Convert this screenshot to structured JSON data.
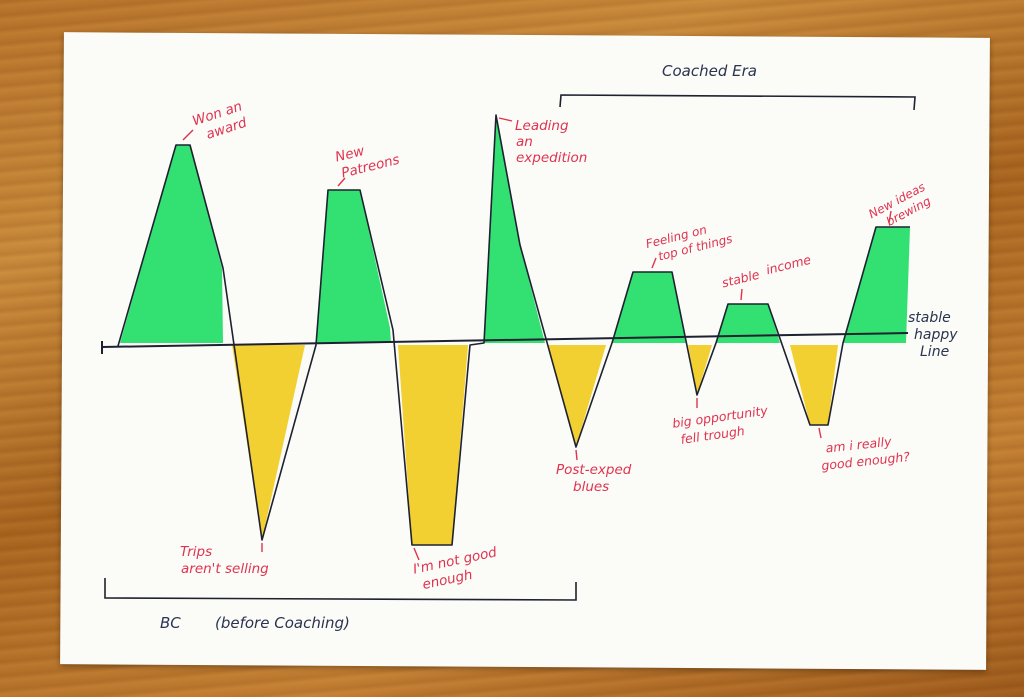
{
  "eras": {
    "coached": "Coached Era",
    "before_a": "BC",
    "before_b": "(before Coaching)"
  },
  "baseline": {
    "line1": "stable",
    "line2": "happy",
    "line3": "Line"
  },
  "annotations": {
    "award_1": "Won an",
    "award_2": "award",
    "patreons_1": "New",
    "patreons_2": "Patreons",
    "expedition_1": "Leading",
    "expedition_2": "an",
    "expedition_3": "expedition",
    "top_1": "Feeling on",
    "top_2": "top of things",
    "income_1": "stable",
    "income_2": "income",
    "ideas_1": "New ideas",
    "ideas_2": "brewing",
    "trips_1": "Trips",
    "trips_2": "aren't selling",
    "notgood_1": "I'm not good",
    "notgood_2": "enough",
    "blues_1": "Post-exped",
    "blues_2": "blues",
    "opportunity_1": "big opportunity",
    "opportunity_2": "fell trough",
    "really_1": "am i really",
    "really_2": "good enough?"
  },
  "colors": {
    "high": "#22dd66",
    "low": "#f2cc1f",
    "ink": "#1e2230",
    "annotation": "#e0334f",
    "era_ink": "#2a3350",
    "paper": "#fbfbf8"
  }
}
